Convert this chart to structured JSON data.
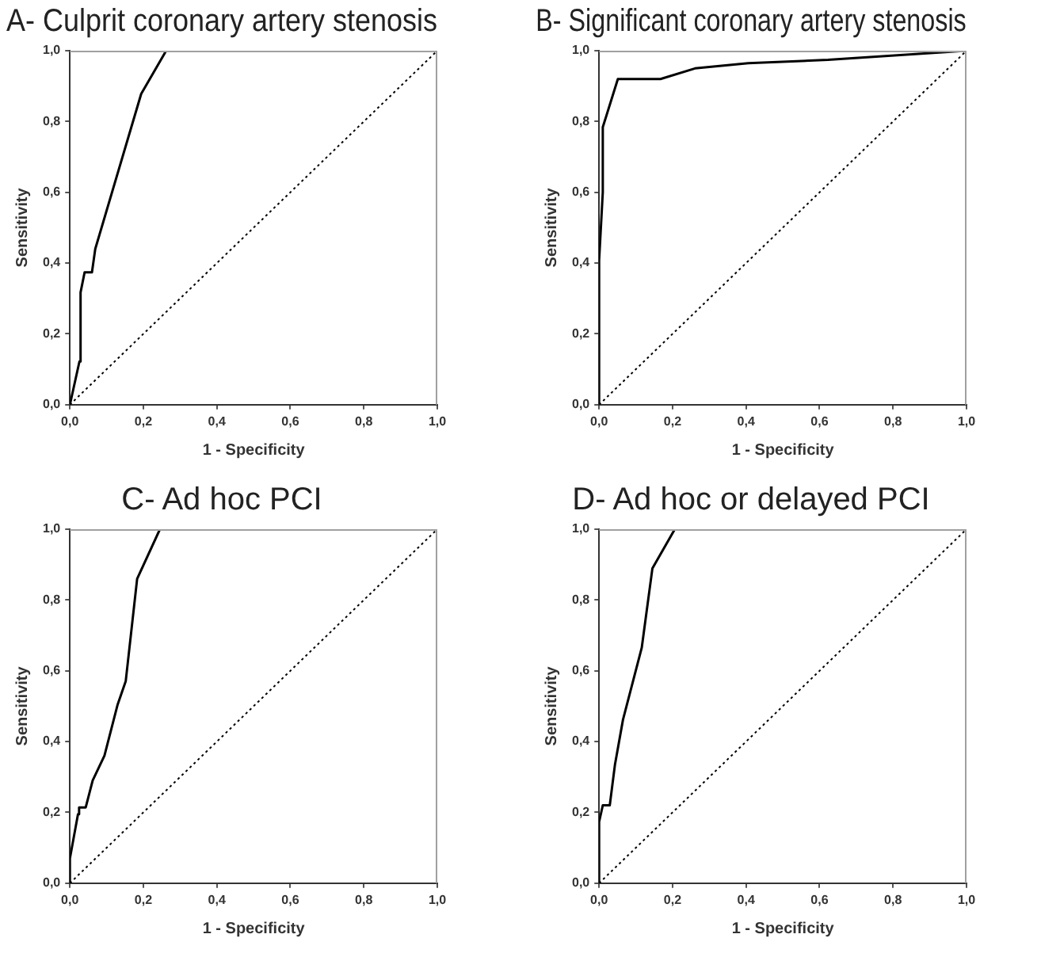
{
  "chart_data": [
    {
      "type": "line",
      "title": "A- Culprit coronary artery stenosis",
      "xlabel": "1 - Specificity",
      "ylabel": "Sensitivity",
      "series": [
        {
          "color": "#000000",
          "line_style": "solid",
          "x": [
            0,
            0.026,
            0.029,
            0.04,
            0.06,
            0.069,
            0.194,
            0.262,
            1
          ],
          "values": [
            0,
            0.122,
            0.317,
            0.374,
            0.374,
            0.44,
            0.878,
            1,
            1
          ]
        },
        {
          "color": "#000000",
          "line_style": "dotted",
          "x": [
            0,
            1
          ],
          "values": [
            0,
            1
          ]
        }
      ],
      "xlim": [
        0,
        1
      ],
      "ylim": [
        0,
        1
      ],
      "xticks": [
        {
          "value": 0,
          "label": "0,0"
        },
        {
          "value": 0.2,
          "label": "0,2"
        },
        {
          "value": 0.4,
          "label": "0,4"
        },
        {
          "value": 0.6,
          "label": "0,6"
        },
        {
          "value": 0.8,
          "label": "0,8"
        },
        {
          "value": 1,
          "label": "1,0"
        }
      ],
      "yticks": [
        {
          "value": 0,
          "label": "0,0"
        },
        {
          "value": 0.2,
          "label": "0,2"
        },
        {
          "value": 0.4,
          "label": "0,4"
        },
        {
          "value": 0.6,
          "label": "0,6"
        },
        {
          "value": 0.8,
          "label": "0,8"
        },
        {
          "value": 1,
          "label": "1,0"
        }
      ],
      "grid": false,
      "legend": false,
      "marker": "none"
    },
    {
      "type": "line",
      "title": "B- Significant coronary artery stenosis",
      "xlabel": "1 - Specificity",
      "ylabel": "Sensitivity",
      "series": [
        {
          "color": "#000000",
          "line_style": "solid",
          "x": [
            0,
            0,
            0.01,
            0.01,
            0.051,
            0.167,
            0.261,
            0.406,
            0.623,
            1
          ],
          "values": [
            0,
            0.408,
            0.6,
            0.784,
            0.92,
            0.92,
            0.95,
            0.965,
            0.974,
            1
          ]
        },
        {
          "color": "#000000",
          "line_style": "dotted",
          "x": [
            0,
            1
          ],
          "values": [
            0,
            1
          ]
        }
      ],
      "xlim": [
        0,
        1
      ],
      "ylim": [
        0,
        1
      ],
      "xticks": [
        {
          "value": 0,
          "label": "0,0"
        },
        {
          "value": 0.2,
          "label": "0,2"
        },
        {
          "value": 0.4,
          "label": "0,4"
        },
        {
          "value": 0.6,
          "label": "0,6"
        },
        {
          "value": 0.8,
          "label": "0,8"
        },
        {
          "value": 1,
          "label": "1,0"
        }
      ],
      "yticks": [
        {
          "value": 0,
          "label": "0,0"
        },
        {
          "value": 0.2,
          "label": "0,2"
        },
        {
          "value": 0.4,
          "label": "0,4"
        },
        {
          "value": 0.6,
          "label": "0,6"
        },
        {
          "value": 0.8,
          "label": "0,8"
        },
        {
          "value": 1,
          "label": "1,0"
        }
      ],
      "grid": false,
      "legend": false,
      "marker": "none"
    },
    {
      "type": "line",
      "title": "C- Ad hoc PCI",
      "xlabel": "1 - Specificity",
      "ylabel": "Sensitivity",
      "series": [
        {
          "color": "#000000",
          "line_style": "solid",
          "x": [
            0,
            0,
            0.022,
            0.025,
            0.043,
            0.062,
            0.094,
            0.13,
            0.152,
            0.183,
            0.245,
            1
          ],
          "values": [
            0,
            0.07,
            0.195,
            0.214,
            0.214,
            0.29,
            0.36,
            0.505,
            0.571,
            0.86,
            1,
            1
          ]
        },
        {
          "color": "#000000",
          "line_style": "dotted",
          "x": [
            0,
            1
          ],
          "values": [
            0,
            1
          ]
        }
      ],
      "xlim": [
        0,
        1
      ],
      "ylim": [
        0,
        1
      ],
      "xticks": [
        {
          "value": 0,
          "label": "0,0"
        },
        {
          "value": 0.2,
          "label": "0,2"
        },
        {
          "value": 0.4,
          "label": "0,4"
        },
        {
          "value": 0.6,
          "label": "0,6"
        },
        {
          "value": 0.8,
          "label": "0,8"
        },
        {
          "value": 1,
          "label": "1,0"
        }
      ],
      "yticks": [
        {
          "value": 0,
          "label": "0,0"
        },
        {
          "value": 0.2,
          "label": "0,2"
        },
        {
          "value": 0.4,
          "label": "0,4"
        },
        {
          "value": 0.6,
          "label": "0,6"
        },
        {
          "value": 0.8,
          "label": "0,8"
        },
        {
          "value": 1,
          "label": "1,0"
        }
      ],
      "grid": false,
      "legend": false,
      "marker": "none"
    },
    {
      "type": "line",
      "title": "D- Ad hoc or delayed PCI",
      "xlabel": "1 - Specificity",
      "ylabel": "Sensitivity",
      "series": [
        {
          "color": "#000000",
          "line_style": "solid",
          "x": [
            0,
            0,
            0.01,
            0.029,
            0.043,
            0.065,
            0.116,
            0.145,
            0.206,
            1
          ],
          "values": [
            0,
            0.173,
            0.22,
            0.22,
            0.334,
            0.462,
            0.665,
            0.889,
            1,
            1
          ]
        },
        {
          "color": "#000000",
          "line_style": "dotted",
          "x": [
            0,
            1
          ],
          "values": [
            0,
            1
          ]
        }
      ],
      "xlim": [
        0,
        1
      ],
      "ylim": [
        0,
        1
      ],
      "xticks": [
        {
          "value": 0,
          "label": "0,0"
        },
        {
          "value": 0.2,
          "label": "0,2"
        },
        {
          "value": 0.4,
          "label": "0,4"
        },
        {
          "value": 0.6,
          "label": "0,6"
        },
        {
          "value": 0.8,
          "label": "0,8"
        },
        {
          "value": 1,
          "label": "1,0"
        }
      ],
      "yticks": [
        {
          "value": 0,
          "label": "0,0"
        },
        {
          "value": 0.2,
          "label": "0,2"
        },
        {
          "value": 0.4,
          "label": "0,4"
        },
        {
          "value": 0.6,
          "label": "0,6"
        },
        {
          "value": 0.8,
          "label": "0,8"
        },
        {
          "value": 1,
          "label": "1,0"
        }
      ],
      "grid": false,
      "legend": false,
      "marker": "none"
    }
  ]
}
